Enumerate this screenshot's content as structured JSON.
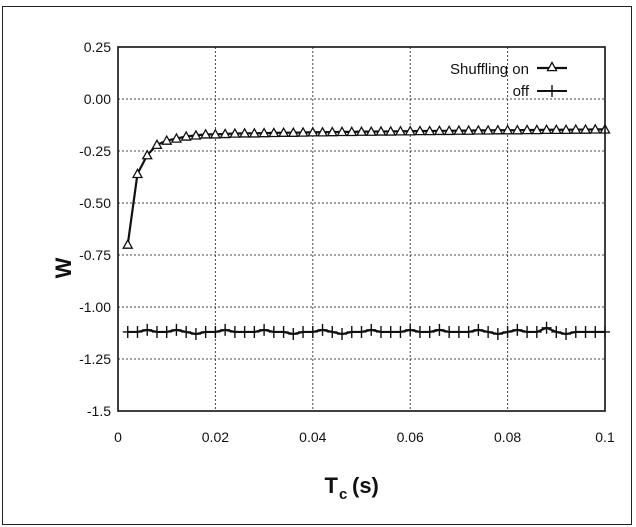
{
  "chart_data": {
    "type": "line",
    "title": "",
    "xlabel": "T",
    "xlabel_sub": "c",
    "xlabel_unit": "(s)",
    "ylabel": "W",
    "xlim": [
      0,
      0.1
    ],
    "ylim": [
      -1.5,
      0.25
    ],
    "xticks": [
      0,
      0.02,
      0.04,
      0.06,
      0.08,
      0.1
    ],
    "xtick_labels": [
      "0",
      "0.02",
      "0.04",
      "0.06",
      "0.08",
      "0.1"
    ],
    "yticks": [
      0.25,
      0,
      -0.25,
      -0.5,
      -0.75,
      -1.0,
      -1.25,
      -1.5
    ],
    "ytick_labels": [
      "0.25",
      "0.00",
      "-0.25",
      "-0.50",
      "-0.75",
      "-1.00",
      "-1.25",
      "-1.5"
    ],
    "grid": true,
    "legend_position": "top-right",
    "legend": [
      "Shuffling on",
      "off"
    ],
    "series": [
      {
        "name": "Shuffling on",
        "marker": "triangle",
        "x": [
          0.002,
          0.004,
          0.006,
          0.008,
          0.01,
          0.012,
          0.014,
          0.016,
          0.018,
          0.02,
          0.022,
          0.024,
          0.026,
          0.028,
          0.03,
          0.032,
          0.034,
          0.036,
          0.038,
          0.04,
          0.042,
          0.044,
          0.046,
          0.048,
          0.05,
          0.052,
          0.054,
          0.056,
          0.058,
          0.06,
          0.062,
          0.064,
          0.066,
          0.068,
          0.07,
          0.072,
          0.074,
          0.076,
          0.078,
          0.08,
          0.082,
          0.084,
          0.086,
          0.088,
          0.09,
          0.092,
          0.094,
          0.096,
          0.098,
          0.1
        ],
        "values": [
          -0.7,
          -0.36,
          -0.27,
          -0.22,
          -0.2,
          -0.19,
          -0.18,
          -0.175,
          -0.17,
          -0.17,
          -0.168,
          -0.166,
          -0.165,
          -0.165,
          -0.164,
          -0.163,
          -0.162,
          -0.162,
          -0.161,
          -0.16,
          -0.16,
          -0.159,
          -0.158,
          -0.158,
          -0.157,
          -0.157,
          -0.156,
          -0.156,
          -0.155,
          -0.155,
          -0.154,
          -0.154,
          -0.153,
          -0.153,
          -0.152,
          -0.152,
          -0.151,
          -0.151,
          -0.15,
          -0.15,
          -0.15,
          -0.149,
          -0.149,
          -0.148,
          -0.148,
          -0.148,
          -0.147,
          -0.147,
          -0.146,
          -0.146
        ]
      },
      {
        "name": "off",
        "marker": "plus",
        "x": [
          0.002,
          0.004,
          0.006,
          0.008,
          0.01,
          0.012,
          0.014,
          0.016,
          0.018,
          0.02,
          0.022,
          0.024,
          0.026,
          0.028,
          0.03,
          0.032,
          0.034,
          0.036,
          0.038,
          0.04,
          0.042,
          0.044,
          0.046,
          0.048,
          0.05,
          0.052,
          0.054,
          0.056,
          0.058,
          0.06,
          0.062,
          0.064,
          0.066,
          0.068,
          0.07,
          0.072,
          0.074,
          0.076,
          0.078,
          0.08,
          0.082,
          0.084,
          0.086,
          0.088,
          0.09,
          0.092,
          0.094,
          0.096,
          0.098,
          0.1
        ],
        "values": [
          -1.12,
          -1.12,
          -1.11,
          -1.12,
          -1.12,
          -1.11,
          -1.12,
          -1.13,
          -1.12,
          -1.12,
          -1.11,
          -1.12,
          -1.12,
          -1.12,
          -1.11,
          -1.12,
          -1.12,
          -1.13,
          -1.12,
          -1.12,
          -1.11,
          -1.12,
          -1.13,
          -1.12,
          -1.12,
          -1.11,
          -1.12,
          -1.12,
          -1.12,
          -1.11,
          -1.12,
          -1.12,
          -1.11,
          -1.12,
          -1.12,
          -1.12,
          -1.11,
          -1.12,
          -1.13,
          -1.12,
          -1.11,
          -1.12,
          -1.12,
          -1.1,
          -1.12,
          -1.13,
          -1.12,
          -1.12,
          -1.12,
          -1.12
        ]
      }
    ],
    "colors": {
      "line": "#111111",
      "grid": "#444444",
      "background": "#ffffff"
    }
  }
}
